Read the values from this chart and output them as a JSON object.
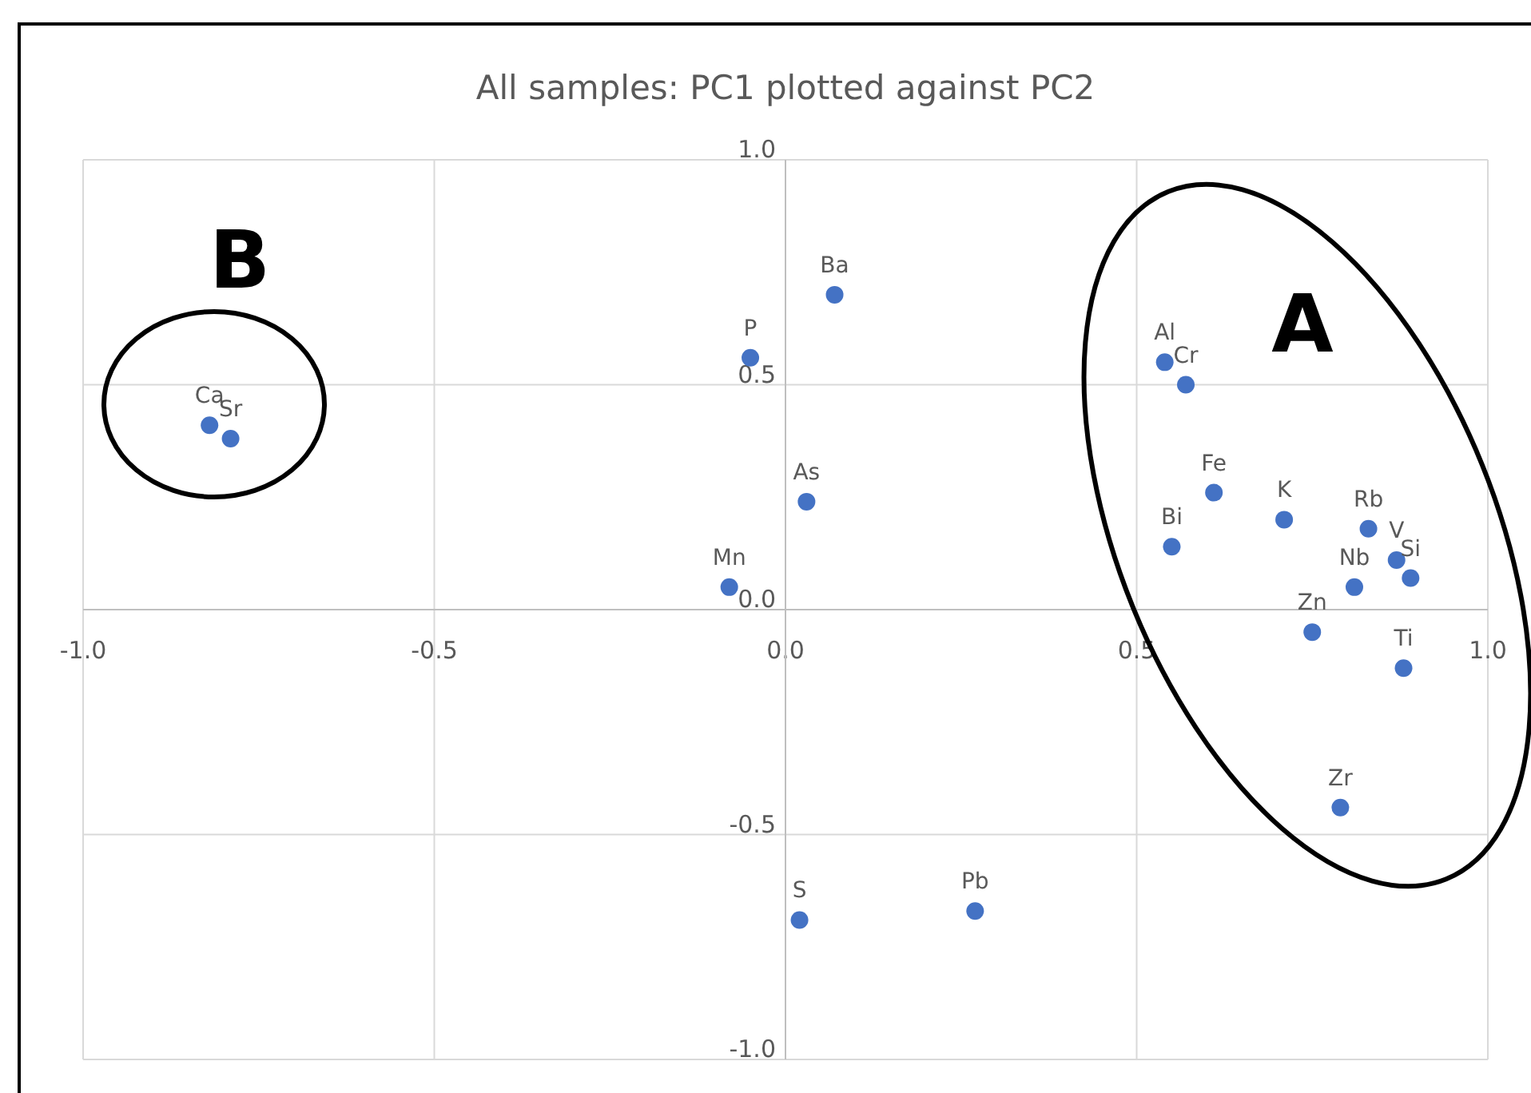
{
  "chart_data": {
    "type": "scatter",
    "title": "All samples: PC1 plotted against PC2",
    "x": [
      -0.82,
      -0.79,
      -0.05,
      0.07,
      0.03,
      -0.08,
      0.02,
      0.27,
      0.54,
      0.57,
      0.61,
      0.55,
      0.71,
      0.83,
      0.87,
      0.89,
      0.81,
      0.75,
      0.88,
      0.79
    ],
    "series": [
      {
        "color": "#4472c4",
        "values": [
          0.41,
          0.38,
          0.56,
          0.7,
          0.24,
          0.05,
          -0.69,
          -0.67,
          0.55,
          0.5,
          0.26,
          0.14,
          0.2,
          0.18,
          0.11,
          0.07,
          0.05,
          -0.05,
          -0.13,
          -0.44
        ]
      }
    ],
    "xlim": [
      -1,
      1
    ],
    "ylim": [
      -1,
      1
    ],
    "xticks": [
      {
        "value": -1,
        "label": "-1.0"
      },
      {
        "value": -0.5,
        "label": "-0.5"
      },
      {
        "value": 0,
        "label": "0.0"
      },
      {
        "value": 0.5,
        "label": "0.5"
      },
      {
        "value": 1,
        "label": "1.0"
      }
    ],
    "yticks": [
      {
        "value": -1,
        "label": "-1.0"
      },
      {
        "value": -0.5,
        "label": "-0.5"
      },
      {
        "value": 0,
        "label": "0.0"
      },
      {
        "value": 0.5,
        "label": "0.5"
      },
      {
        "value": 1,
        "label": "1.0"
      }
    ],
    "grid": true,
    "marker": "circle",
    "annotations": [
      "A",
      "B",
      {
        "text": "Ca",
        "x": -0.82,
        "y": 0.41
      },
      {
        "text": "Sr",
        "x": -0.79,
        "y": 0.38
      },
      {
        "text": "P",
        "x": -0.05,
        "y": 0.56
      },
      {
        "text": "Ba",
        "x": 0.07,
        "y": 0.7
      },
      {
        "text": "As",
        "x": 0.03,
        "y": 0.24
      },
      {
        "text": "Mn",
        "x": -0.08,
        "y": 0.05
      },
      {
        "text": "S",
        "x": 0.02,
        "y": -0.69
      },
      {
        "text": "Pb",
        "x": 0.27,
        "y": -0.67
      },
      {
        "text": "Al",
        "x": 0.54,
        "y": 0.55
      },
      {
        "text": "Cr",
        "x": 0.57,
        "y": 0.5
      },
      {
        "text": "Fe",
        "x": 0.61,
        "y": 0.26
      },
      {
        "text": "Bi",
        "x": 0.55,
        "y": 0.14
      },
      {
        "text": "K",
        "x": 0.71,
        "y": 0.2
      },
      {
        "text": "Rb",
        "x": 0.83,
        "y": 0.18
      },
      {
        "text": "V",
        "x": 0.87,
        "y": 0.11
      },
      {
        "text": "Si",
        "x": 0.89,
        "y": 0.07
      },
      {
        "text": "Nb",
        "x": 0.81,
        "y": 0.05
      },
      {
        "text": "Zn",
        "x": 0.75,
        "y": -0.05
      },
      {
        "text": "Ti",
        "x": 0.88,
        "y": -0.13
      },
      {
        "text": "Zr",
        "x": 0.79,
        "y": -0.44
      }
    ]
  }
}
